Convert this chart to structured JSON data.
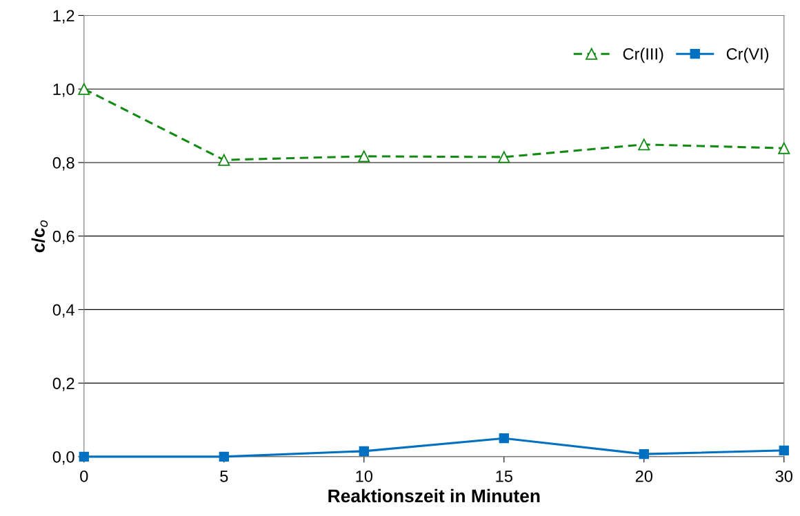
{
  "chart_data": {
    "type": "line",
    "xlabel": "Reaktionszeit in Minuten",
    "ylabel": "c/c$_{o}$",
    "categories": [
      "0",
      "5",
      "10",
      "15",
      "20",
      "30"
    ],
    "series": [
      {
        "name": "Cr(III)",
        "color": "#138a13",
        "values": [
          1.0,
          0.807,
          0.817,
          0.815,
          0.849,
          0.839
        ],
        "marker": "triangle",
        "line_style": "dashed"
      },
      {
        "name": "Cr(VI)",
        "color": "#0070c0",
        "values": [
          0.0,
          0.0,
          0.015,
          0.05,
          0.007,
          0.017
        ],
        "marker": "square",
        "line_style": "solid"
      }
    ],
    "ylim": [
      0,
      1.2
    ],
    "yticks": [
      {
        "value": 0,
        "label": "0,0"
      },
      {
        "value": 0.2,
        "label": "0,2"
      },
      {
        "value": 0.4,
        "label": "0,4"
      },
      {
        "value": 0.6,
        "label": "0,6"
      },
      {
        "value": 0.8,
        "label": "0,8"
      },
      {
        "value": 1.0,
        "label": "1,0"
      },
      {
        "value": 1.2,
        "label": "1,2"
      }
    ],
    "grid": "y",
    "legend": "top right"
  }
}
